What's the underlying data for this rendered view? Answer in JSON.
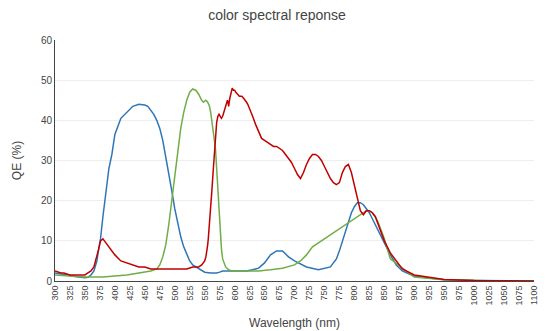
{
  "chart_data": {
    "type": "line",
    "title": "color spectral reponse",
    "xlabel": "Wavelength (nm)",
    "ylabel": "QE (%)",
    "xlim": [
      300,
      1100
    ],
    "ylim": [
      0,
      60
    ],
    "xticks": [
      300,
      325,
      350,
      375,
      400,
      425,
      450,
      475,
      500,
      525,
      550,
      575,
      600,
      625,
      650,
      675,
      700,
      725,
      750,
      775,
      800,
      825,
      850,
      875,
      900,
      925,
      950,
      975,
      1000,
      1025,
      1050,
      1075,
      1100
    ],
    "yticks": [
      0,
      10,
      20,
      30,
      40,
      50,
      60
    ],
    "grid": "y",
    "series": [
      {
        "color": "#2e75b6",
        "x": [
          300,
          310,
          320,
          330,
          340,
          350,
          355,
          360,
          365,
          370,
          373,
          376,
          380,
          385,
          390,
          395,
          400,
          410,
          420,
          430,
          440,
          450,
          455,
          460,
          465,
          470,
          475,
          480,
          485,
          490,
          495,
          500,
          505,
          510,
          515,
          520,
          525,
          530,
          535,
          540,
          545,
          550,
          560,
          565,
          570,
          575,
          580,
          585,
          590,
          595,
          600,
          620,
          630,
          640,
          650,
          660,
          670,
          680,
          690,
          700,
          720,
          740,
          760,
          770,
          775,
          780,
          785,
          790,
          795,
          800,
          805,
          810,
          815,
          820,
          825,
          830,
          835,
          840,
          845,
          850,
          860,
          870,
          880,
          900,
          950,
          1000,
          1050,
          1100
        ],
        "values": [
          2.0,
          1.8,
          1.5,
          1.2,
          1.0,
          0.8,
          0.9,
          1.5,
          2.5,
          5.0,
          8.0,
          10.5,
          16.0,
          22.0,
          28.0,
          31.5,
          36.5,
          40.5,
          42.0,
          43.5,
          44.0,
          43.8,
          43.5,
          42.5,
          41.5,
          40.0,
          38.0,
          35.0,
          31.0,
          27.0,
          22.5,
          18.0,
          14.0,
          11.0,
          8.5,
          6.5,
          5.0,
          4.0,
          3.5,
          3.0,
          2.5,
          2.2,
          2.0,
          2.0,
          2.0,
          2.2,
          2.5,
          2.5,
          2.5,
          2.5,
          2.5,
          2.5,
          2.8,
          3.2,
          4.5,
          6.5,
          7.5,
          7.5,
          6.0,
          5.0,
          3.5,
          2.8,
          3.5,
          5.5,
          7.5,
          10.0,
          12.5,
          15.0,
          17.0,
          18.5,
          19.5,
          19.5,
          19.0,
          18.0,
          17.0,
          15.5,
          14.0,
          12.5,
          11.0,
          9.5,
          6.5,
          4.0,
          2.5,
          1.2,
          0.3,
          0.1,
          0.0,
          0.0
        ]
      },
      {
        "color": "#70ad47",
        "x": [
          300,
          350,
          380,
          400,
          420,
          440,
          460,
          470,
          475,
          480,
          485,
          490,
          495,
          500,
          505,
          510,
          515,
          520,
          525,
          530,
          535,
          540,
          545,
          548,
          550,
          552,
          555,
          558,
          560,
          562,
          565,
          568,
          570,
          572,
          574,
          576,
          578,
          580,
          585,
          590,
          595,
          600,
          620,
          640,
          660,
          680,
          700,
          710,
          720,
          730,
          740,
          750,
          760,
          770,
          780,
          790,
          795,
          800,
          805,
          810,
          815,
          820,
          825,
          830,
          835,
          840,
          845,
          850,
          860,
          900,
          950,
          1000,
          1050,
          1100
        ],
        "values": [
          1.5,
          1.0,
          1.0,
          1.2,
          1.5,
          2.0,
          2.5,
          3.0,
          4.0,
          6.0,
          9.0,
          14.0,
          20.0,
          27.0,
          33.0,
          38.0,
          42.0,
          45.0,
          47.0,
          47.8,
          47.5,
          46.5,
          45.0,
          44.5,
          44.8,
          45.0,
          44.5,
          43.5,
          42.0,
          40.0,
          37.0,
          33.0,
          28.0,
          22.5,
          17.0,
          12.0,
          8.0,
          5.5,
          3.5,
          2.8,
          2.5,
          2.5,
          2.5,
          2.5,
          2.8,
          3.2,
          4.0,
          5.0,
          6.5,
          8.5,
          9.5,
          10.5,
          11.5,
          12.5,
          13.5,
          14.5,
          15.0,
          15.5,
          16.0,
          16.5,
          17.0,
          17.5,
          17.5,
          17.0,
          16.0,
          14.5,
          12.5,
          10.5,
          5.5,
          1.0,
          0.3,
          0.1,
          0.0,
          0.0
        ]
      },
      {
        "color": "#c00000",
        "x": [
          300,
          310,
          315,
          320,
          325,
          330,
          335,
          340,
          345,
          350,
          355,
          360,
          365,
          370,
          373,
          376,
          380,
          385,
          390,
          395,
          400,
          410,
          420,
          430,
          440,
          450,
          460,
          470,
          480,
          490,
          500,
          510,
          520,
          530,
          540,
          545,
          548,
          550,
          552,
          554,
          555,
          556,
          558,
          560,
          562,
          564,
          565,
          566,
          567,
          568,
          569,
          570,
          572,
          574,
          576,
          578,
          580,
          582,
          584,
          585,
          586,
          587,
          588,
          589,
          590,
          592,
          594,
          596,
          598,
          600,
          602,
          605,
          608,
          610,
          612,
          615,
          618,
          620,
          622,
          625,
          628,
          630,
          635,
          640,
          645,
          650,
          655,
          660,
          665,
          670,
          675,
          680,
          685,
          690,
          695,
          700,
          705,
          710,
          715,
          720,
          725,
          730,
          735,
          740,
          745,
          750,
          755,
          760,
          765,
          770,
          775,
          780,
          785,
          790,
          795,
          800,
          805,
          810,
          815,
          820,
          825,
          830,
          835,
          840,
          845,
          850,
          860,
          870,
          880,
          900,
          950,
          1000,
          1050,
          1100
        ],
        "values": [
          2.5,
          2.0,
          2.0,
          1.8,
          1.5,
          1.5,
          1.5,
          1.5,
          1.5,
          1.5,
          2.0,
          2.5,
          3.5,
          6.0,
          8.0,
          10.0,
          10.5,
          9.5,
          8.5,
          7.5,
          6.5,
          5.0,
          4.5,
          4.0,
          3.5,
          3.5,
          3.0,
          3.0,
          3.0,
          3.0,
          3.0,
          3.0,
          3.0,
          3.5,
          3.5,
          4.0,
          4.5,
          5.0,
          6.0,
          7.5,
          9.0,
          10.5,
          14.0,
          18.0,
          22.5,
          27.0,
          29.5,
          31.5,
          33.5,
          35.5,
          37.5,
          39.5,
          41.0,
          41.5,
          41.0,
          40.5,
          41.0,
          42.0,
          43.5,
          44.0,
          44.5,
          45.0,
          45.0,
          44.5,
          43.5,
          45.5,
          47.0,
          48.0,
          47.5,
          47.5,
          47.0,
          46.5,
          46.0,
          46.0,
          46.0,
          45.5,
          45.0,
          44.5,
          44.0,
          43.0,
          42.0,
          41.0,
          39.0,
          37.0,
          35.5,
          35.0,
          34.5,
          34.0,
          33.5,
          33.5,
          33.0,
          32.5,
          31.5,
          30.5,
          29.5,
          28.0,
          26.5,
          25.5,
          27.0,
          29.0,
          30.5,
          31.5,
          31.5,
          31.0,
          30.0,
          28.5,
          27.0,
          25.5,
          24.5,
          24.0,
          24.5,
          27.0,
          28.5,
          29.0,
          27.0,
          24.0,
          20.5,
          17.5,
          16.5,
          17.5,
          17.5,
          17.0,
          16.0,
          14.0,
          12.0,
          10.0,
          7.0,
          5.0,
          3.0,
          1.5,
          0.4,
          0.1,
          0.0,
          0.0
        ]
      }
    ]
  }
}
